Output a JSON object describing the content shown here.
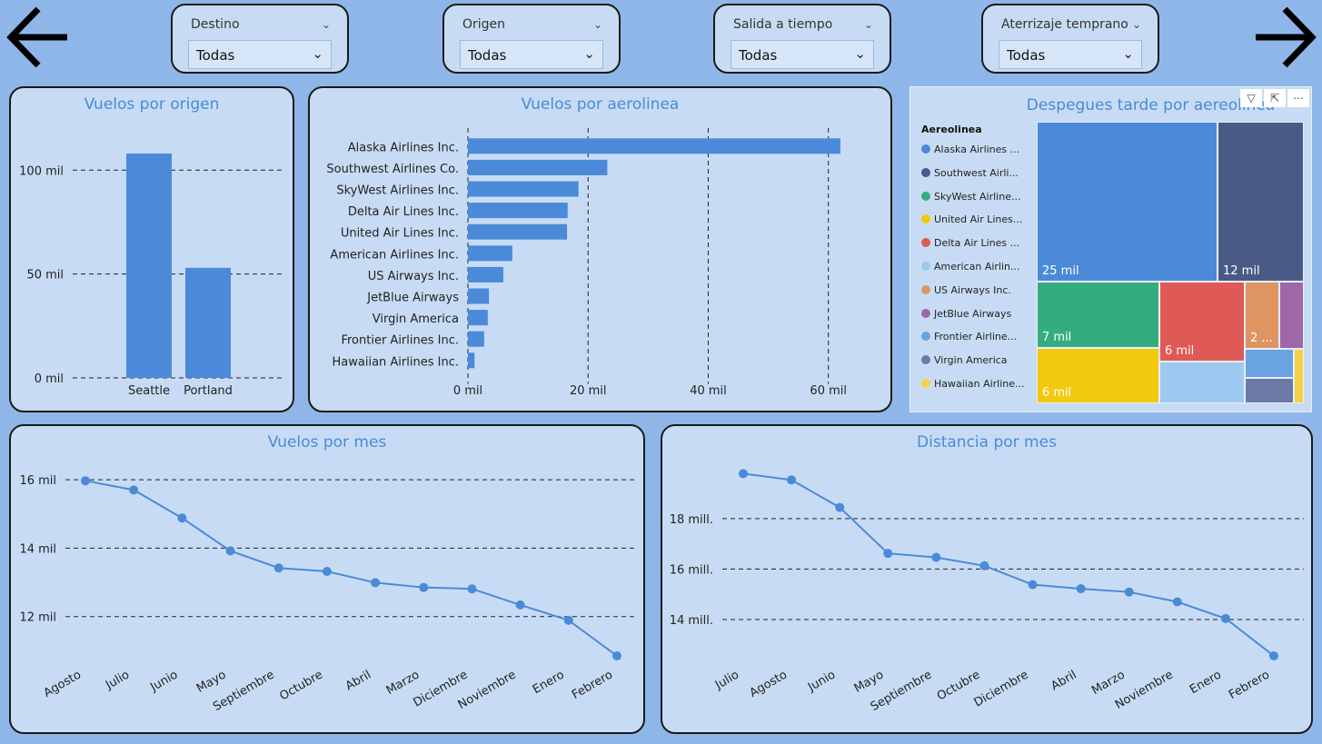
{
  "filters": [
    {
      "label": "Destino",
      "value": "Todas"
    },
    {
      "label": "Origen",
      "value": "Todas"
    },
    {
      "label": "Salida a tiempo",
      "value": "Todas"
    },
    {
      "label": "Aterrizaje temprano",
      "value": "Todas"
    }
  ],
  "icons": {
    "back": "arrow-left-icon",
    "forward": "arrow-right-icon"
  },
  "visual_header": {
    "filter": "filter-icon",
    "focus": "focus-mode-icon",
    "more": "more-options-icon"
  },
  "charts": {
    "origen": {
      "title": "Vuelos por origen"
    },
    "aerolinea": {
      "title": "Vuelos por aerolinea"
    },
    "despegues": {
      "title": "Despegues tarde por aereolinea",
      "legend_title": "Aereolinea"
    },
    "mes": {
      "title": "Vuelos por mes"
    },
    "distancia": {
      "title": "Distancia por mes"
    }
  },
  "chart_data": [
    {
      "type": "bar",
      "title": "Vuelos por origen",
      "categories": [
        "Seattle",
        "Portland"
      ],
      "values": [
        108000,
        53000
      ],
      "ylim": [
        0,
        115000
      ],
      "yticks": [
        0,
        50000,
        100000
      ],
      "ytick_labels": [
        "0 mil",
        "50 mil",
        "100 mil"
      ],
      "grid": true,
      "color": "#4a8ad8"
    },
    {
      "type": "bar",
      "orientation": "horizontal",
      "title": "Vuelos por aerolinea",
      "categories": [
        "Alaska Airlines Inc.",
        "Southwest Airlines Co.",
        "SkyWest Airlines Inc.",
        "Delta Air Lines Inc.",
        "United Air Lines Inc.",
        "American Airlines Inc.",
        "US Airways Inc.",
        "JetBlue Airways",
        "Virgin America",
        "Frontier Airlines Inc.",
        "Hawaiian Airlines Inc."
      ],
      "values": [
        62000,
        23200,
        18400,
        16600,
        16500,
        7400,
        5900,
        3500,
        3300,
        2700,
        1100
      ],
      "xlim": [
        0,
        67000
      ],
      "xticks": [
        0,
        20000,
        40000,
        60000
      ],
      "xtick_labels": [
        "0 mil",
        "20 mil",
        "40 mil",
        "60 mil"
      ],
      "grid": true,
      "color": "#4a8ad8"
    },
    {
      "type": "treemap",
      "title": "Despegues tarde por aereolinea",
      "legend_title": "Aereolinea",
      "legend": [
        {
          "name": "Alaska Airlines ...",
          "color": "#4a8ad8"
        },
        {
          "name": "Southwest Airli...",
          "color": "#495a87"
        },
        {
          "name": "SkyWest Airline...",
          "color": "#34ad7e"
        },
        {
          "name": "United Air Lines...",
          "color": "#f2c811"
        },
        {
          "name": "Delta Air Lines ...",
          "color": "#e05a55"
        },
        {
          "name": "American Airlin...",
          "color": "#9cc9ef"
        },
        {
          "name": "US Airways Inc.",
          "color": "#de9561"
        },
        {
          "name": "JetBlue Airways",
          "color": "#9e67a8"
        },
        {
          "name": "Frontier Airline...",
          "color": "#6aa3e2"
        },
        {
          "name": "Virgin America",
          "color": "#6b7aa6"
        },
        {
          "name": "Hawaiian Airline...",
          "color": "#f5d244"
        }
      ],
      "data_labels": [
        "25 mil",
        "12 mil",
        "7 mil",
        "6 mil",
        "6 mil",
        "2 ..."
      ]
    },
    {
      "type": "line",
      "title": "Vuelos por mes",
      "x": [
        "Agosto",
        "Julio",
        "Junio",
        "Mayo",
        "Septiembre",
        "Octubre",
        "Abril",
        "Marzo",
        "Diciembre",
        "Noviembre",
        "Enero",
        "Febrero"
      ],
      "values": [
        15970,
        15700,
        14880,
        13920,
        13420,
        13320,
        12990,
        12850,
        12810,
        12340,
        11890,
        10850
      ],
      "ylim": [
        10850,
        16400
      ],
      "yticks": [
        12000,
        14000,
        16000
      ],
      "ytick_labels": [
        "12 mil",
        "14 mil",
        "16 mil"
      ],
      "grid": true,
      "color": "#4a8ad8"
    },
    {
      "type": "line",
      "title": "Distancia por mes",
      "x": [
        "Julio",
        "Agosto",
        "Junio",
        "Mayo",
        "Septiembre",
        "Octubre",
        "Diciembre",
        "Abril",
        "Marzo",
        "Noviembre",
        "Enero",
        "Febrero"
      ],
      "values": [
        19780000,
        19530000,
        18440000,
        16620000,
        16460000,
        16130000,
        15380000,
        15220000,
        15090000,
        14700000,
        14040000,
        12560000
      ],
      "ylim": [
        12560000,
        20800000
      ],
      "yticks": [
        14000000,
        16000000,
        18000000
      ],
      "ytick_labels": [
        "14 mill.",
        "16 mill.",
        "18 mill."
      ],
      "grid": true,
      "color": "#4a8ad8"
    }
  ]
}
